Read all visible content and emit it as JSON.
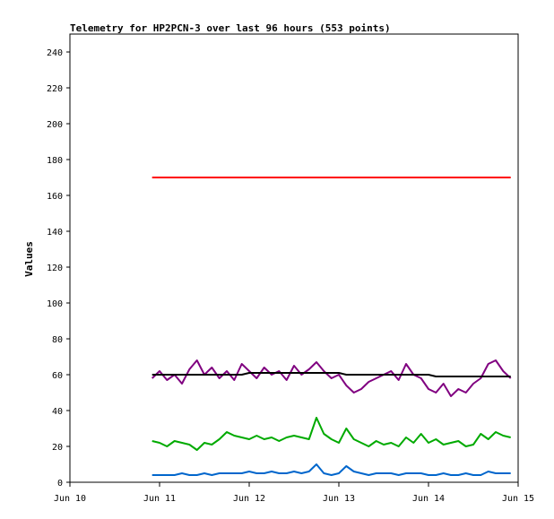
{
  "chart_data": {
    "type": "line",
    "title": "Telemetry for HP2PCN-3 over last 96 hours (553 points)",
    "xlabel": "",
    "ylabel": "Values",
    "xlim": [
      "2016-06-10",
      "2016-06-15"
    ],
    "ylim": [
      0,
      250
    ],
    "x_ticks": [
      "Jun 10",
      "Jun 11",
      "Jun 12",
      "Jun 13",
      "Jun 14",
      "Jun 15"
    ],
    "y_ticks": [
      0,
      20,
      40,
      60,
      80,
      100,
      120,
      140,
      160,
      180,
      200,
      220,
      240
    ],
    "grid": false,
    "legend": "none",
    "x": [
      "2016-06-10T22:00",
      "2016-06-11T00:00",
      "2016-06-11T02:00",
      "2016-06-11T04:00",
      "2016-06-11T06:00",
      "2016-06-11T08:00",
      "2016-06-11T10:00",
      "2016-06-11T12:00",
      "2016-06-11T14:00",
      "2016-06-11T16:00",
      "2016-06-11T18:00",
      "2016-06-11T20:00",
      "2016-06-11T22:00",
      "2016-06-12T00:00",
      "2016-06-12T02:00",
      "2016-06-12T04:00",
      "2016-06-12T06:00",
      "2016-06-12T08:00",
      "2016-06-12T10:00",
      "2016-06-12T12:00",
      "2016-06-12T14:00",
      "2016-06-12T16:00",
      "2016-06-12T18:00",
      "2016-06-12T20:00",
      "2016-06-12T22:00",
      "2016-06-13T00:00",
      "2016-06-13T02:00",
      "2016-06-13T04:00",
      "2016-06-13T06:00",
      "2016-06-13T08:00",
      "2016-06-13T10:00",
      "2016-06-13T12:00",
      "2016-06-13T14:00",
      "2016-06-13T16:00",
      "2016-06-13T18:00",
      "2016-06-13T20:00",
      "2016-06-13T22:00",
      "2016-06-14T00:00",
      "2016-06-14T02:00",
      "2016-06-14T04:00",
      "2016-06-14T06:00",
      "2016-06-14T08:00",
      "2016-06-14T10:00",
      "2016-06-14T12:00",
      "2016-06-14T14:00",
      "2016-06-14T16:00",
      "2016-06-14T18:00",
      "2016-06-14T20:00",
      "2016-06-14T22:00"
    ],
    "series": [
      {
        "color": "#ff0000",
        "values": [
          170,
          170,
          170,
          170,
          170,
          170,
          170,
          170,
          170,
          170,
          170,
          170,
          170,
          170,
          170,
          170,
          170,
          170,
          170,
          170,
          170,
          170,
          170,
          170,
          170,
          170,
          170,
          170,
          170,
          170,
          170,
          170,
          170,
          170,
          170,
          170,
          170,
          170,
          170,
          170,
          170,
          170,
          170,
          170,
          170,
          170,
          170,
          170,
          170
        ]
      },
      {
        "color": "#800080",
        "values": [
          58,
          62,
          57,
          60,
          55,
          63,
          68,
          60,
          64,
          58,
          62,
          57,
          66,
          62,
          58,
          64,
          60,
          62,
          57,
          65,
          60,
          63,
          67,
          62,
          58,
          60,
          54,
          50,
          52,
          56,
          58,
          60,
          62,
          57,
          66,
          60,
          58,
          52,
          50,
          55,
          48,
          52,
          50,
          55,
          58,
          66,
          68,
          62,
          58
        ]
      },
      {
        "color": "#000000",
        "values": [
          60,
          60,
          60,
          60,
          60,
          60,
          60,
          60,
          60,
          60,
          60,
          60,
          60,
          61,
          61,
          61,
          61,
          61,
          61,
          61,
          61,
          61,
          61,
          61,
          61,
          61,
          60,
          60,
          60,
          60,
          60,
          60,
          60,
          60,
          60,
          60,
          60,
          60,
          59,
          59,
          59,
          59,
          59,
          59,
          59,
          59,
          59,
          59,
          59
        ]
      },
      {
        "color": "#00aa00",
        "values": [
          23,
          22,
          20,
          23,
          22,
          21,
          18,
          22,
          21,
          24,
          28,
          26,
          25,
          24,
          26,
          24,
          25,
          23,
          25,
          26,
          25,
          24,
          36,
          27,
          24,
          22,
          30,
          24,
          22,
          20,
          23,
          21,
          22,
          20,
          25,
          22,
          27,
          22,
          24,
          21,
          22,
          23,
          20,
          21,
          27,
          24,
          28,
          26,
          25
        ]
      },
      {
        "color": "#0066cc",
        "values": [
          4,
          4,
          4,
          4,
          5,
          4,
          4,
          5,
          4,
          5,
          5,
          5,
          5,
          6,
          5,
          5,
          6,
          5,
          5,
          6,
          5,
          6,
          10,
          5,
          4,
          5,
          9,
          6,
          5,
          4,
          5,
          5,
          5,
          4,
          5,
          5,
          5,
          4,
          4,
          5,
          4,
          4,
          5,
          4,
          4,
          6,
          5,
          5,
          5
        ]
      }
    ]
  }
}
